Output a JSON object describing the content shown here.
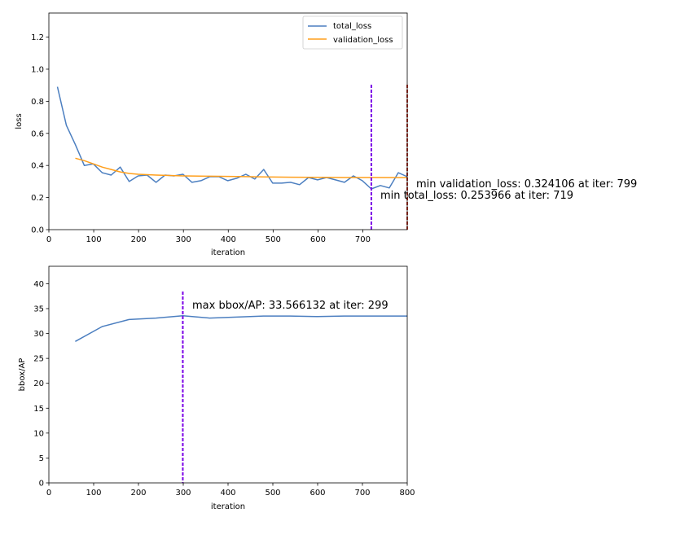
{
  "chart_data": [
    {
      "type": "line",
      "xlabel": "iteration",
      "ylabel": "loss",
      "xlim": [
        0,
        799
      ],
      "ylim": [
        0,
        1.35
      ],
      "xticks": [
        0,
        100,
        200,
        300,
        400,
        500,
        600,
        700
      ],
      "yticks": [
        0.0,
        0.2,
        0.4,
        0.6,
        0.8,
        1.0,
        1.2
      ],
      "ytick_labels": [
        "0.0",
        "0.2",
        "0.4",
        "0.6",
        "0.8",
        "1.0",
        "1.2"
      ],
      "legend": "top-right",
      "grid": false,
      "series": [
        {
          "name": "total_loss",
          "color": "#4c7fc0",
          "points": [
            [
              19,
              0.89
            ],
            [
              39,
              0.65
            ],
            [
              59,
              0.53
            ],
            [
              79,
              0.4
            ],
            [
              99,
              0.41
            ],
            [
              119,
              0.355
            ],
            [
              139,
              0.34
            ],
            [
              159,
              0.39
            ],
            [
              179,
              0.3
            ],
            [
              199,
              0.335
            ],
            [
              219,
              0.34
            ],
            [
              239,
              0.295
            ],
            [
              259,
              0.34
            ],
            [
              279,
              0.335
            ],
            [
              299,
              0.345
            ],
            [
              319,
              0.295
            ],
            [
              339,
              0.305
            ],
            [
              359,
              0.33
            ],
            [
              379,
              0.33
            ],
            [
              399,
              0.305
            ],
            [
              419,
              0.32
            ],
            [
              439,
              0.345
            ],
            [
              459,
              0.315
            ],
            [
              479,
              0.375
            ],
            [
              499,
              0.29
            ],
            [
              519,
              0.29
            ],
            [
              539,
              0.295
            ],
            [
              559,
              0.28
            ],
            [
              579,
              0.325
            ],
            [
              599,
              0.31
            ],
            [
              619,
              0.325
            ],
            [
              639,
              0.31
            ],
            [
              659,
              0.295
            ],
            [
              679,
              0.335
            ],
            [
              699,
              0.305
            ],
            [
              719,
              0.254
            ],
            [
              739,
              0.275
            ],
            [
              759,
              0.26
            ],
            [
              779,
              0.355
            ],
            [
              799,
              0.33
            ]
          ]
        },
        {
          "name": "validation_loss",
          "color": "#ff9f1c",
          "points": [
            [
              59,
              0.445
            ],
            [
              79,
              0.43
            ],
            [
              99,
              0.41
            ],
            [
              119,
              0.39
            ],
            [
              139,
              0.375
            ],
            [
              159,
              0.36
            ],
            [
              179,
              0.35
            ],
            [
              199,
              0.345
            ],
            [
              239,
              0.34
            ],
            [
              299,
              0.335
            ],
            [
              359,
              0.333
            ],
            [
              419,
              0.331
            ],
            [
              479,
              0.329
            ],
            [
              539,
              0.327
            ],
            [
              599,
              0.326
            ],
            [
              659,
              0.325
            ],
            [
              719,
              0.325
            ],
            [
              799,
              0.324106
            ]
          ]
        }
      ],
      "markers": [
        {
          "x": 719,
          "color": "#7a00e6"
        },
        {
          "x": 799,
          "color": "#c0392b"
        }
      ],
      "annotations": [
        {
          "text": "min validation_loss: 0.324106 at iter: 799",
          "x": 799,
          "y": 0.324
        },
        {
          "text": "min total_loss: 0.253966 at iter: 719",
          "x": 719,
          "y": 0.254
        }
      ]
    },
    {
      "type": "line",
      "xlabel": "iteration",
      "ylabel": "bbox/AP",
      "xlim": [
        0,
        800
      ],
      "ylim": [
        0,
        43.5
      ],
      "xticks": [
        0,
        100,
        200,
        300,
        400,
        500,
        600,
        700,
        800
      ],
      "yticks": [
        0,
        5,
        10,
        15,
        20,
        25,
        30,
        35,
        40
      ],
      "ytick_labels": [
        "0",
        "5",
        "10",
        "15",
        "20",
        "25",
        "30",
        "35",
        "40"
      ],
      "grid": false,
      "series": [
        {
          "color": "#4c7fc0",
          "points": [
            [
              59,
              28.4
            ],
            [
              119,
              31.4
            ],
            [
              179,
              32.8
            ],
            [
              239,
              33.1
            ],
            [
              299,
              33.566132
            ],
            [
              359,
              33.1
            ],
            [
              419,
              33.3
            ],
            [
              479,
              33.5
            ],
            [
              539,
              33.5
            ],
            [
              599,
              33.4
            ],
            [
              659,
              33.5
            ],
            [
              719,
              33.5
            ],
            [
              800,
              33.5
            ]
          ]
        }
      ],
      "markers": [
        {
          "x": 299,
          "color": "#7a00e6"
        }
      ],
      "annotations": [
        {
          "text": "max bbox/AP: 33.566132 at iter: 299",
          "x": 299,
          "y": 33.57
        }
      ]
    }
  ]
}
